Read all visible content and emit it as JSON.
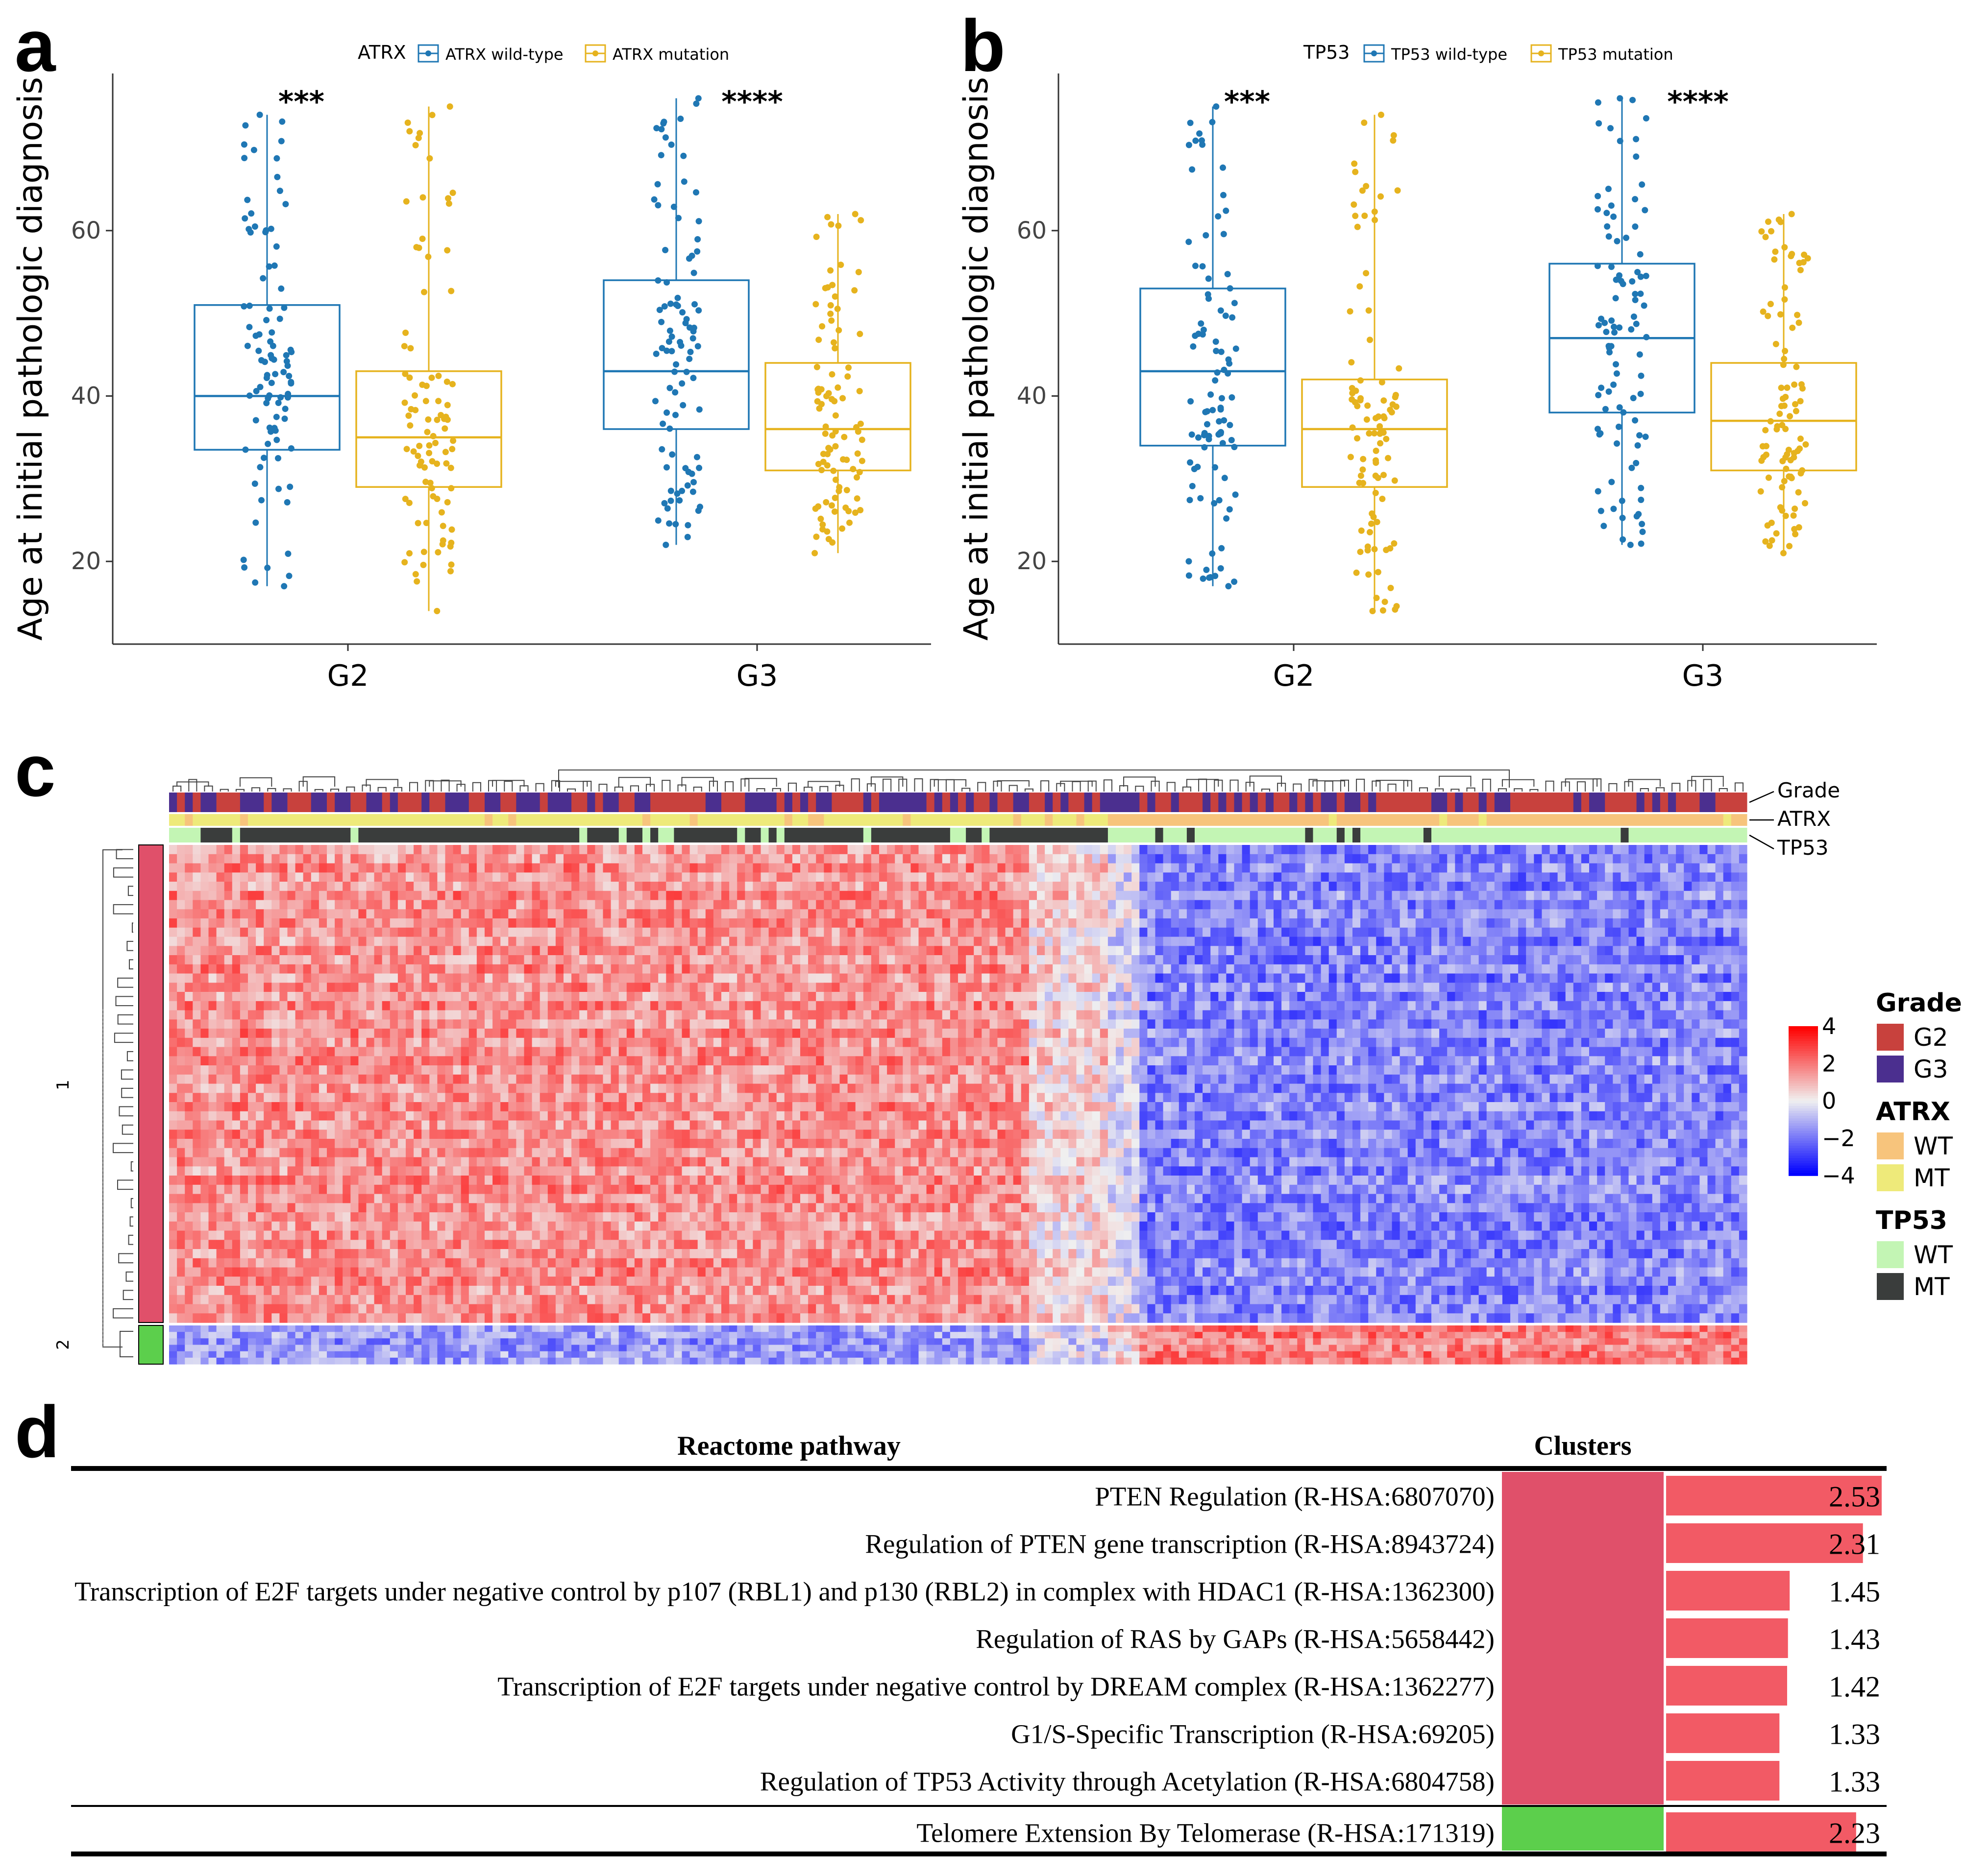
{
  "panels": {
    "a": {
      "letter": "a"
    },
    "b": {
      "letter": "b"
    },
    "c": {
      "letter": "c"
    },
    "d": {
      "letter": "d"
    }
  },
  "colors": {
    "wildtype": "#1f77b4",
    "mutation": "#e6b31e",
    "grade_g2": "#c8413d",
    "grade_g3": "#4b2f8f",
    "atrx_wt": "#f7c47c",
    "atrx_mt": "#eeea7a",
    "tp53_wt": "#c3f5b4",
    "tp53_mt": "#3a3d3c",
    "cluster1": "#e0506a",
    "cluster2": "#5ccf4c",
    "bar": "#f25a65"
  },
  "chart_data": [
    {
      "type": "box",
      "panel": "a",
      "title": "",
      "legend_title": "ATRX",
      "legend_position": "top",
      "series": [
        {
          "name": "ATRX wild-type"
        },
        {
          "name": "ATRX mutation"
        }
      ],
      "categories": [
        "G2",
        "G3"
      ],
      "ylabel": "Age at initial pathologic diagnosis",
      "xlabel": "",
      "ylim": [
        10,
        79
      ],
      "yticks": [
        20,
        40,
        60
      ],
      "boxes": [
        {
          "category": "G2",
          "series": "ATRX wild-type",
          "min": 17,
          "q1": 33.5,
          "median": 40,
          "q3": 51,
          "max": 74
        },
        {
          "category": "G2",
          "series": "ATRX mutation",
          "min": 14,
          "q1": 29,
          "median": 35,
          "q3": 43,
          "max": 75
        },
        {
          "category": "G3",
          "series": "ATRX wild-type",
          "min": 22,
          "q1": 36,
          "median": 43,
          "q3": 54,
          "max": 76
        },
        {
          "category": "G3",
          "series": "ATRX mutation",
          "min": 21,
          "q1": 31,
          "median": 36,
          "q3": 44,
          "max": 62
        }
      ],
      "significance": [
        {
          "category": "G2",
          "label": "***"
        },
        {
          "category": "G3",
          "label": "****"
        }
      ]
    },
    {
      "type": "box",
      "panel": "b",
      "title": "",
      "legend_title": "TP53",
      "legend_position": "top",
      "series": [
        {
          "name": "TP53 wild-type"
        },
        {
          "name": "TP53 mutation"
        }
      ],
      "categories": [
        "G2",
        "G3"
      ],
      "ylabel": "Age at initial pathologic diagnosis",
      "xlabel": "",
      "ylim": [
        10,
        79
      ],
      "yticks": [
        20,
        40,
        60
      ],
      "boxes": [
        {
          "category": "G2",
          "series": "TP53 wild-type",
          "min": 17,
          "q1": 34,
          "median": 43,
          "q3": 53,
          "max": 75
        },
        {
          "category": "G2",
          "series": "TP53 mutation",
          "min": 14,
          "q1": 29,
          "median": 36,
          "q3": 42,
          "max": 74
        },
        {
          "category": "G3",
          "series": "TP53 wild-type",
          "min": 22,
          "q1": 38,
          "median": 47,
          "q3": 56,
          "max": 76
        },
        {
          "category": "G3",
          "series": "TP53 mutation",
          "min": 21,
          "q1": 31,
          "median": 37,
          "q3": 44,
          "max": 62
        }
      ],
      "significance": [
        {
          "category": "G2",
          "label": "***"
        },
        {
          "category": "G3",
          "label": "****"
        }
      ]
    },
    {
      "type": "heatmap",
      "panel": "c",
      "annotation_rows": [
        "Grade",
        "ATRX",
        "TP53"
      ],
      "row_clusters": [
        "1",
        "2"
      ],
      "color_scale": {
        "min": -4,
        "max": 4,
        "ticks": [
          "4",
          "2",
          "0",
          "−2",
          "−4"
        ]
      },
      "legend": [
        {
          "title": "Grade",
          "items": [
            "G2",
            "G3"
          ]
        },
        {
          "title": "ATRX",
          "items": [
            "WT",
            "MT"
          ]
        },
        {
          "title": "TP53",
          "items": [
            "WT",
            "MT"
          ]
        }
      ]
    },
    {
      "type": "table",
      "panel": "d",
      "columns": [
        "Reactome pathway",
        "Clusters"
      ],
      "value_max": 2.53,
      "rows": [
        {
          "pathway": "PTEN Regulation (R-HSA:6807070)",
          "cluster": "1",
          "value": 2.53
        },
        {
          "pathway": "Regulation of PTEN gene transcription (R-HSA:8943724)",
          "cluster": "1",
          "value": 2.31
        },
        {
          "pathway": "Transcription of E2F targets under negative control by p107 (RBL1) and p130 (RBL2) in complex with HDAC1 (R-HSA:1362300)",
          "cluster": "1",
          "value": 1.45
        },
        {
          "pathway": "Regulation of RAS by GAPs (R-HSA:5658442)",
          "cluster": "1",
          "value": 1.43
        },
        {
          "pathway": "Transcription of E2F targets under negative control by DREAM complex (R-HSA:1362277)",
          "cluster": "1",
          "value": 1.42
        },
        {
          "pathway": "G1/S-Specific Transcription (R-HSA:69205)",
          "cluster": "1",
          "value": 1.33
        },
        {
          "pathway": "Regulation of TP53 Activity through Acetylation (R-HSA:6804758)",
          "cluster": "1",
          "value": 1.33
        },
        {
          "pathway": "Telomere Extension By Telomerase (R-HSA:171319)",
          "cluster": "2",
          "value": 2.23
        }
      ]
    }
  ]
}
